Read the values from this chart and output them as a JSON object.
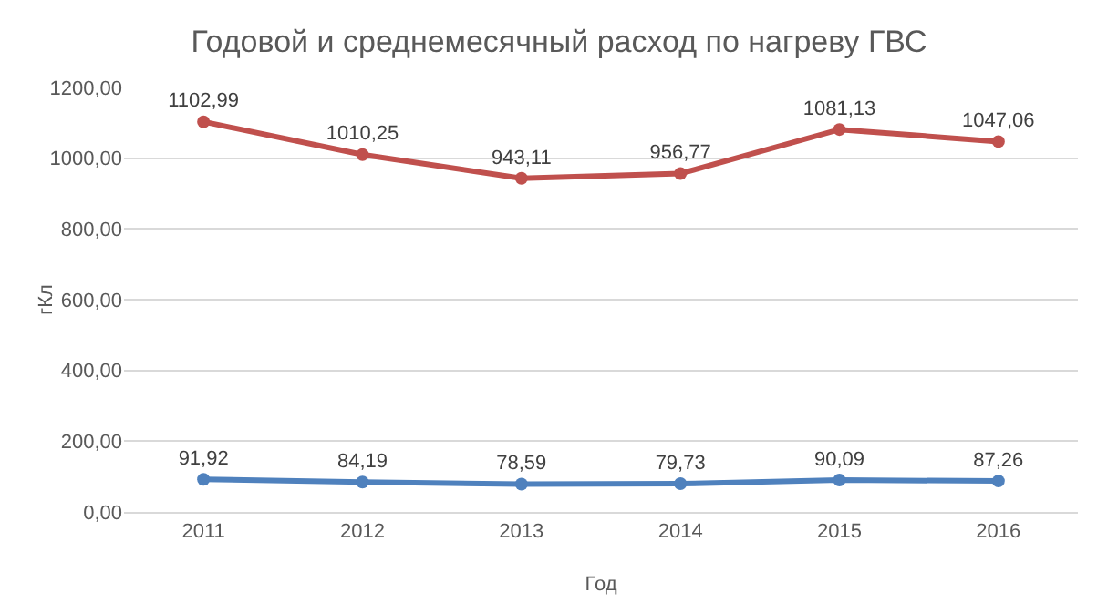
{
  "chart_data": {
    "type": "line",
    "title": "Годовой и среднемесячный расход по нагреву ГВС",
    "xlabel": "Год",
    "ylabel": "гКл",
    "categories": [
      "2011",
      "2012",
      "2013",
      "2014",
      "2015",
      "2016"
    ],
    "series": [
      {
        "color": "#c0504d",
        "values": [
          1102.99,
          1010.25,
          943.11,
          956.77,
          1081.13,
          1047.06
        ],
        "value_labels": [
          "1102,99",
          "1010,25",
          "943,11",
          "956,77",
          "1081,13",
          "1047,06"
        ]
      },
      {
        "color": "#4f81bd",
        "values": [
          91.92,
          84.19,
          78.59,
          79.73,
          90.09,
          87.26
        ],
        "value_labels": [
          "91,92",
          "84,19",
          "78,59",
          "79,73",
          "90,09",
          "87,26"
        ]
      }
    ],
    "ylim": [
      0,
      1200
    ],
    "yticks": [
      {
        "value": 0,
        "label": "0,00"
      },
      {
        "value": 200,
        "label": "200,00"
      },
      {
        "value": 400,
        "label": "400,00"
      },
      {
        "value": 600,
        "label": "600,00"
      },
      {
        "value": 800,
        "label": "800,00"
      },
      {
        "value": 1000,
        "label": "1000,00"
      },
      {
        "value": 1200,
        "label": "1200,00"
      }
    ],
    "grid": "y",
    "marker": "circle",
    "line_style": "solid"
  }
}
